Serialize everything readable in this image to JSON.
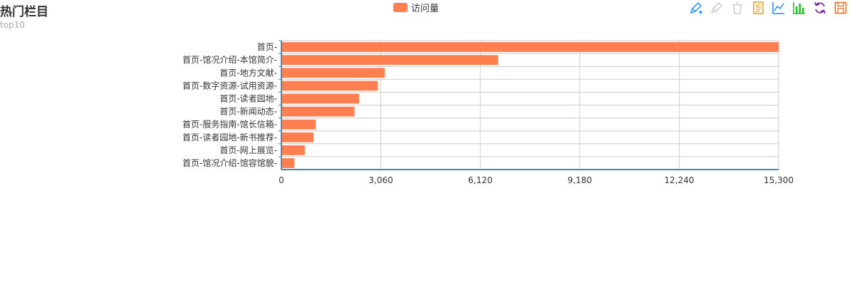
{
  "header": {
    "title": "热门栏目",
    "subtitle": "top10"
  },
  "legend": {
    "label": "访问量",
    "color": "#ff7f50"
  },
  "toolbox": [
    {
      "icon": "mark-pen-icon",
      "color": "#1e90ff"
    },
    {
      "icon": "mark-undo-icon",
      "color": "#cccccc"
    },
    {
      "icon": "mark-clear-icon",
      "color": "#cccccc"
    },
    {
      "icon": "data-view-icon",
      "color": "#e0a020"
    },
    {
      "icon": "line-chart-icon",
      "color": "#1e90ff"
    },
    {
      "icon": "bar-chart-icon",
      "color": "#22bb22"
    },
    {
      "icon": "restore-icon",
      "color": "#7b2aa0"
    },
    {
      "icon": "save-image-icon",
      "color": "#e07020"
    }
  ],
  "chart_data": {
    "type": "bar",
    "orientation": "horizontal",
    "categories": [
      "首页",
      "首页-馆况介绍-本馆简介",
      "首页-地方文献",
      "首页-数字资源-试用资源",
      "首页-读者园地",
      "首页-新闻动态",
      "首页-服务指南-馆长信箱",
      "首页-读者园地-新书推荐",
      "首页-网上展览",
      "首页-馆况介绍-馆容馆貌"
    ],
    "series": [
      {
        "name": "访问量",
        "color": "#ff7f50",
        "values": [
          15300,
          6670,
          3180,
          2970,
          2390,
          2250,
          1060,
          990,
          720,
          400
        ]
      }
    ],
    "x_ticks": [
      "0",
      "3,060",
      "6,120",
      "9,180",
      "12,240",
      "15,300"
    ],
    "xlim": [
      0,
      15300
    ],
    "grid": true,
    "legend_position": "top-center"
  }
}
